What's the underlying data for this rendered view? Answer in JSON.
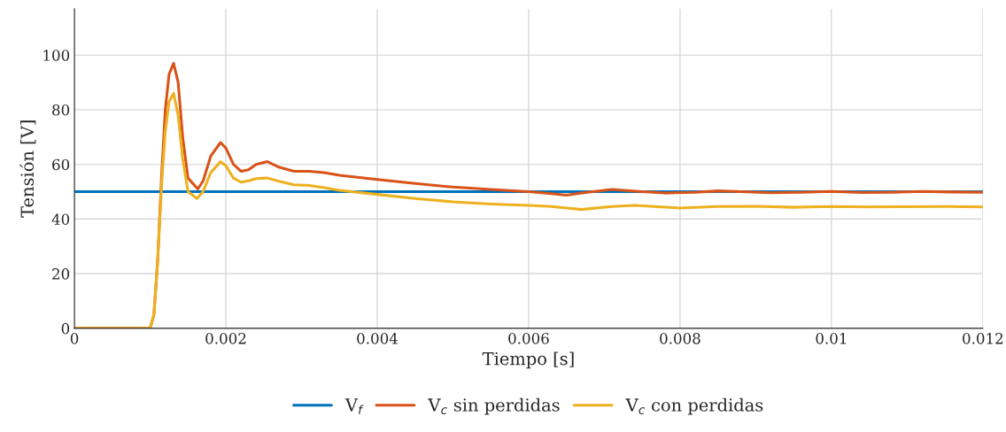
{
  "chart_data": {
    "type": "line",
    "xlabel": "Tiempo [s]",
    "ylabel": "Tensión [V]",
    "xlim": [
      0,
      0.012
    ],
    "xticks": [
      0,
      0.002,
      0.004,
      0.006,
      0.008,
      0.01,
      0.012
    ],
    "ylim": [
      0,
      117
    ],
    "yticks": [
      0,
      20,
      40,
      60,
      80,
      100
    ],
    "grid": true,
    "legend": "bottom",
    "marker": "none",
    "line_style": "solid",
    "series": [
      {
        "name": "V$_{f}$",
        "color": "#0072bd",
        "x": [
          0,
          0.012
        ],
        "values": [
          50,
          50
        ]
      },
      {
        "name": "V$_{c}$ sin perdidas",
        "color": "#d95319",
        "x": [
          0,
          0.001,
          0.00105,
          0.0011,
          0.00115,
          0.0012,
          0.00125,
          0.00131,
          0.00137,
          0.00143,
          0.0015,
          0.00163,
          0.0017,
          0.0018,
          0.00193,
          0.002,
          0.0021,
          0.0022,
          0.0023,
          0.0024,
          0.00255,
          0.0027,
          0.0029,
          0.0031,
          0.0033,
          0.0035,
          0.004,
          0.0045,
          0.005,
          0.0055,
          0.006,
          0.0063,
          0.0065,
          0.0067,
          0.0071,
          0.0075,
          0.0078,
          0.0082,
          0.0085,
          0.0088,
          0.0092,
          0.0096,
          0.01,
          0.0104,
          0.0108,
          0.0112,
          0.0116,
          0.012
        ],
        "values": [
          0,
          0,
          5,
          25,
          55,
          80,
          93,
          97,
          90,
          70,
          55,
          51,
          54,
          63,
          68,
          66,
          60,
          57.5,
          58,
          60,
          61,
          59,
          57.5,
          57.5,
          57,
          56,
          54.5,
          53,
          51.7,
          50.8,
          50,
          49.3,
          48.7,
          49.5,
          50.8,
          50,
          49.5,
          49.8,
          50.3,
          50,
          49.6,
          49.8,
          50.1,
          49.7,
          49.8,
          50.1,
          49.9,
          49.8
        ]
      },
      {
        "name": "V$_{c}$ con perdidas",
        "color": "#edb120",
        "x": [
          0,
          0.001,
          0.00105,
          0.0011,
          0.00115,
          0.0012,
          0.00125,
          0.00131,
          0.00137,
          0.00143,
          0.0015,
          0.00162,
          0.0017,
          0.0018,
          0.00193,
          0.002,
          0.0021,
          0.0022,
          0.0023,
          0.0024,
          0.00255,
          0.0027,
          0.0029,
          0.0031,
          0.0033,
          0.0035,
          0.004,
          0.0045,
          0.005,
          0.0055,
          0.006,
          0.0063,
          0.0065,
          0.0067,
          0.0071,
          0.0074,
          0.0077,
          0.008,
          0.0085,
          0.009,
          0.0095,
          0.01,
          0.0105,
          0.011,
          0.0115,
          0.012
        ],
        "values": [
          0,
          0,
          5,
          25,
          52,
          72,
          83,
          86,
          78,
          62,
          50,
          47.5,
          50,
          57,
          61,
          59.5,
          55,
          53.5,
          54,
          54.8,
          55,
          53.8,
          52.5,
          52.3,
          51.5,
          50.5,
          49,
          47.5,
          46.3,
          45.5,
          45,
          44.6,
          44,
          43.5,
          44.6,
          45,
          44.5,
          44,
          44.6,
          44.7,
          44.3,
          44.6,
          44.4,
          44.5,
          44.6,
          44.4
        ]
      }
    ]
  }
}
